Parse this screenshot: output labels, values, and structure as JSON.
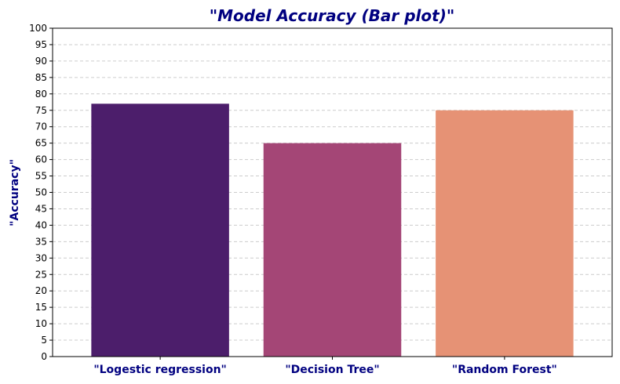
{
  "chart_data": {
    "type": "bar",
    "title": "\"Model Accuracy (Bar plot)\"",
    "xlabel": "",
    "ylabel": "\"Accuracy\"",
    "categories": [
      "\"Logestic regression\"",
      "\"Decision Tree\"",
      "\"Random Forest\""
    ],
    "values": [
      77,
      65,
      75
    ],
    "colors": [
      "#4c1e6b",
      "#a44676",
      "#e69275"
    ],
    "ylim": [
      0,
      100
    ],
    "yticks": [
      0,
      5,
      10,
      15,
      20,
      25,
      30,
      35,
      40,
      45,
      50,
      55,
      60,
      65,
      70,
      75,
      80,
      85,
      90,
      95,
      100
    ],
    "grid": true,
    "title_color": "#000080",
    "label_color": "#000080"
  }
}
